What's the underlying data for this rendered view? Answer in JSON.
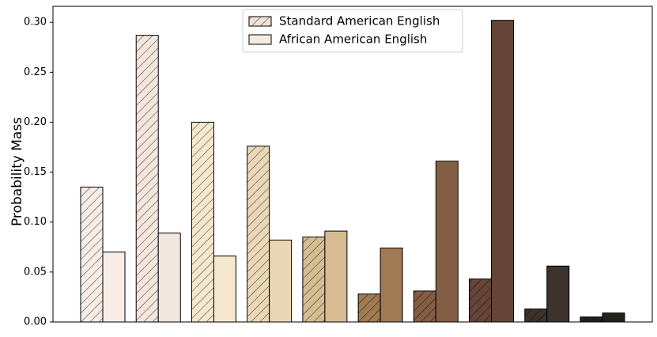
{
  "chart_data": {
    "type": "bar",
    "ylabel": "Probability Mass",
    "categories": [
      null,
      null,
      null,
      null,
      null,
      null,
      null,
      null,
      null,
      null
    ],
    "colors": [
      "#f7ede6",
      "#f3e6dc",
      "#f6e8cf",
      "#e9d7b6",
      "#d6bc93",
      "#a07a52",
      "#835e44",
      "#654537",
      "#3c332d",
      "#25201c"
    ],
    "series": [
      {
        "name": "Standard American English",
        "hatch": true,
        "legend_color": "#f0e2d4",
        "values": [
          0.135,
          0.287,
          0.2,
          0.176,
          0.085,
          0.028,
          0.031,
          0.043,
          0.013,
          0.005
        ]
      },
      {
        "name": "African American English",
        "hatch": false,
        "legend_color": "#f6ebe0",
        "values": [
          0.07,
          0.089,
          0.066,
          0.082,
          0.091,
          0.074,
          0.161,
          0.302,
          0.056,
          0.009
        ]
      }
    ],
    "ylim": [
      0,
      0.316
    ],
    "yticks": [
      {
        "value": 0,
        "label": "0.00"
      },
      {
        "value": 0.05,
        "label": "0.05"
      },
      {
        "value": 0.1,
        "label": "0.10"
      },
      {
        "value": 0.15,
        "label": "0.15"
      },
      {
        "value": 0.2,
        "label": "0.20"
      },
      {
        "value": 0.25,
        "label": "0.25"
      },
      {
        "value": 0.3,
        "label": "0.30"
      }
    ],
    "legend": "upper center"
  }
}
